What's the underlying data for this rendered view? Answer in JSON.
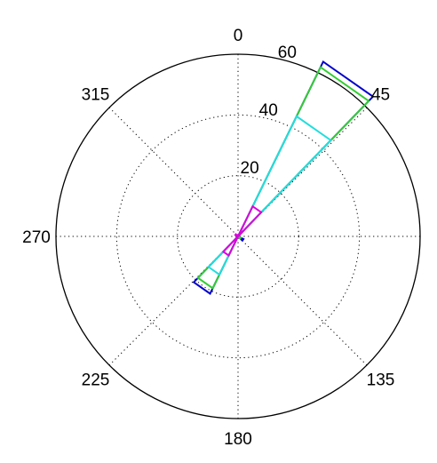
{
  "chart_data": {
    "type": "polar-rose",
    "theta_zero": "top",
    "theta_direction": "clockwise",
    "r_max": 60,
    "r_ticks": [
      {
        "value": 20,
        "label": "20"
      },
      {
        "value": 40,
        "label": "40"
      },
      {
        "value": 60,
        "label": "60"
      }
    ],
    "theta_ticks": [
      {
        "angle": 0,
        "label": "0"
      },
      {
        "angle": 45,
        "label": "45"
      },
      {
        "angle": 135,
        "label": "135"
      },
      {
        "angle": 180,
        "label": "180"
      },
      {
        "angle": 225,
        "label": "225"
      },
      {
        "angle": 270,
        "label": "270"
      },
      {
        "angle": 315,
        "label": "315"
      }
    ],
    "grid": true,
    "series": [
      {
        "color": "#0000cc",
        "wedges": [
          {
            "start": 26,
            "end": 44,
            "r": 64
          },
          {
            "start": 206,
            "end": 224,
            "r": 21
          },
          {
            "start": 116,
            "end": 134,
            "r": 2
          }
        ]
      },
      {
        "color": "#33cc33",
        "wedges": [
          {
            "start": 26,
            "end": 44,
            "r": 62
          },
          {
            "start": 206,
            "end": 224,
            "r": 19
          },
          {
            "start": 116,
            "end": 134,
            "r": 1
          }
        ]
      },
      {
        "color": "#22dddd",
        "wedges": [
          {
            "start": 26,
            "end": 44,
            "r": 44
          },
          {
            "start": 206,
            "end": 224,
            "r": 14
          }
        ]
      },
      {
        "color": "#dd00dd",
        "wedges": [
          {
            "start": 26,
            "end": 44,
            "r": 11
          },
          {
            "start": 206,
            "end": 224,
            "r": 7
          },
          {
            "start": 296,
            "end": 314,
            "r": 1
          }
        ]
      }
    ]
  }
}
